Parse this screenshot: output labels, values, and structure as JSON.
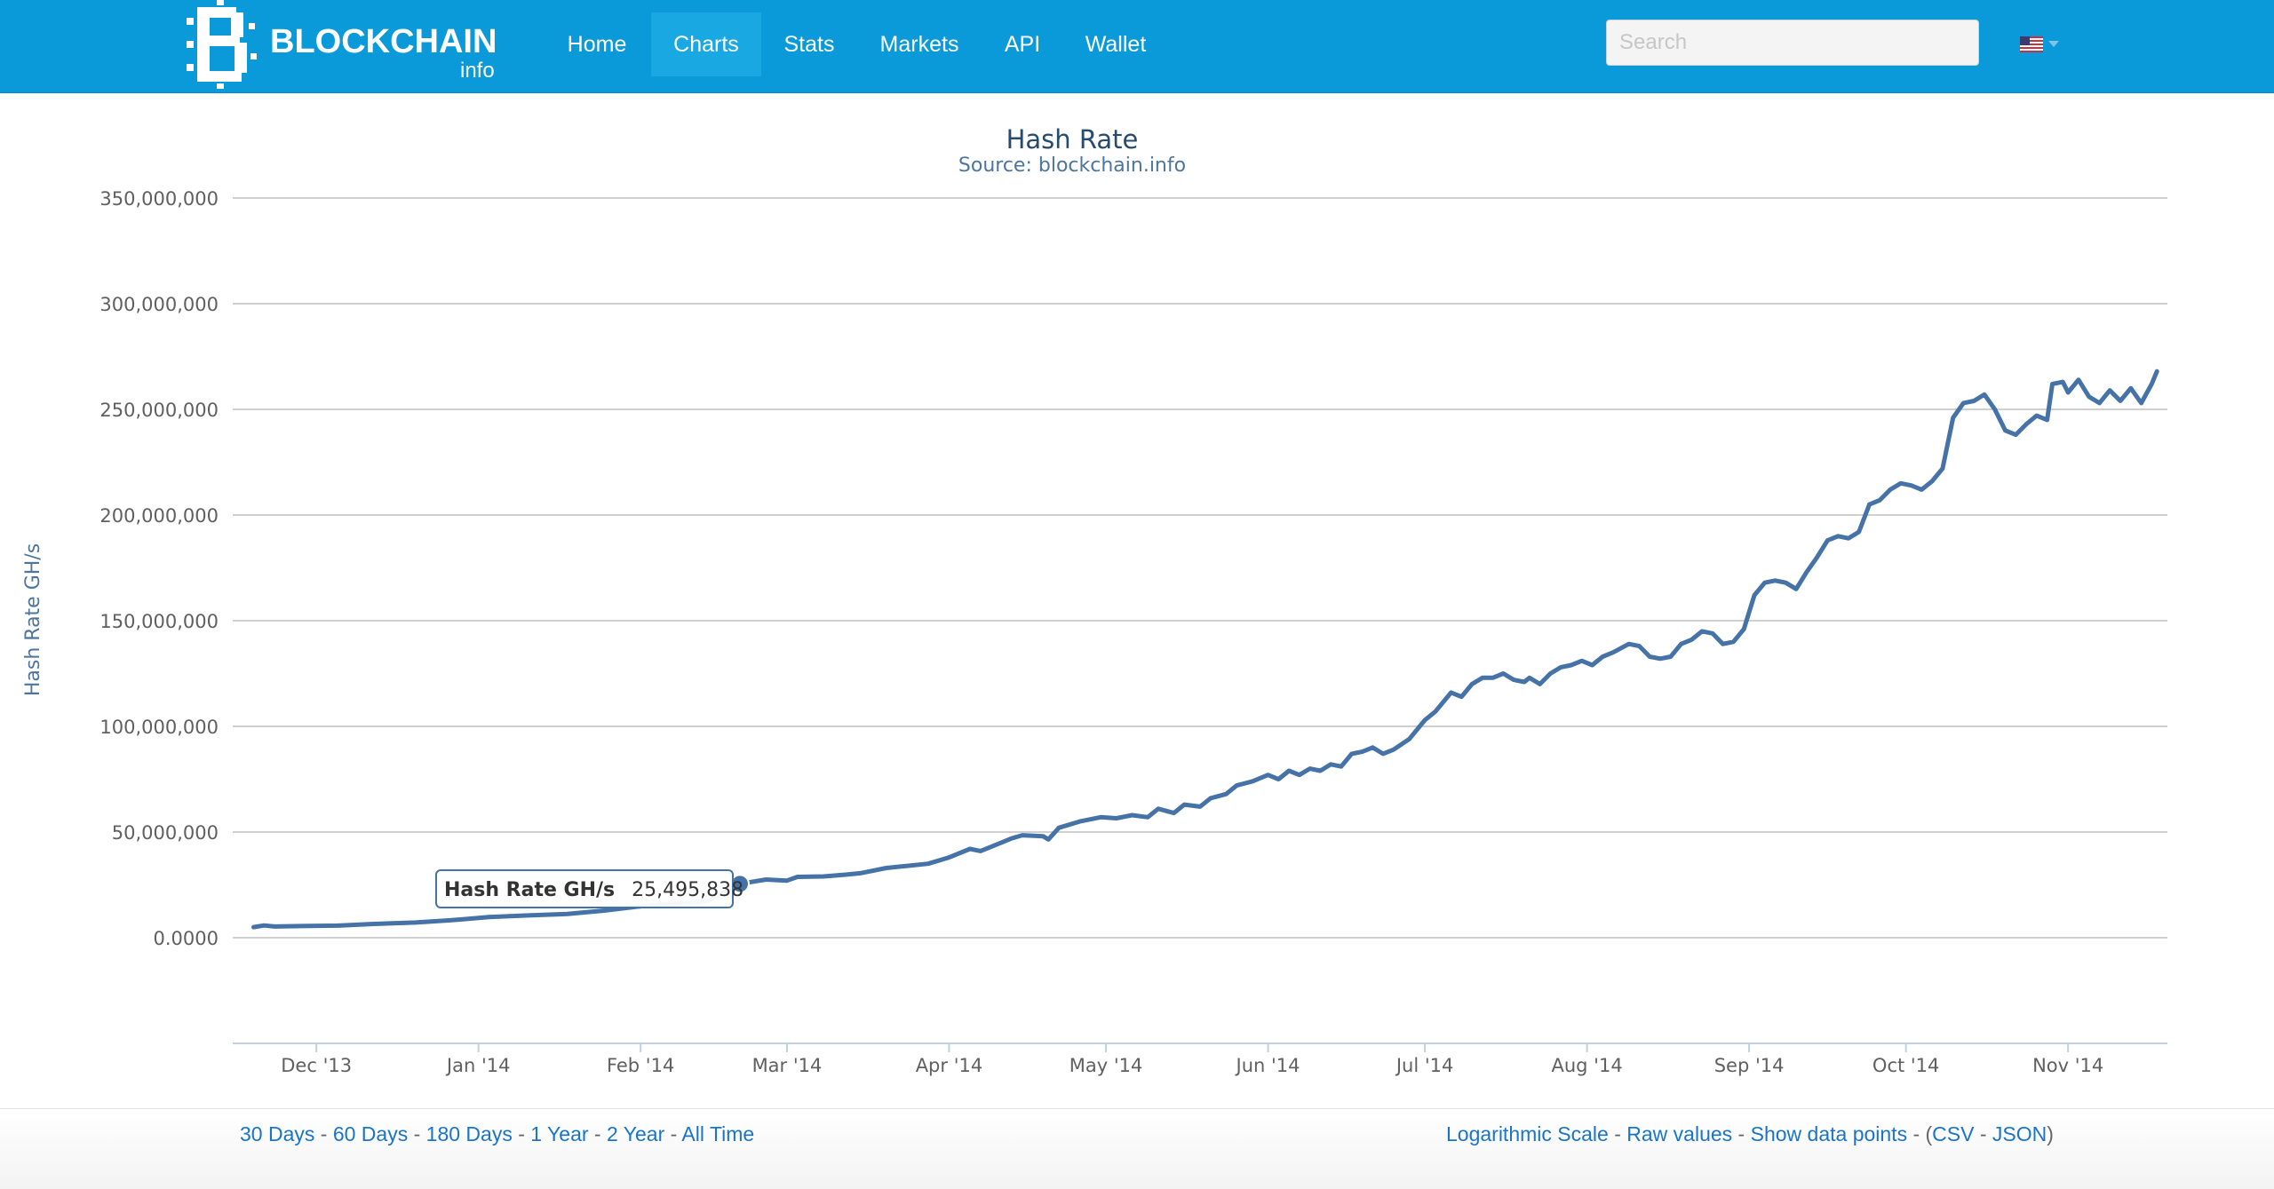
{
  "brand": {
    "name": "BLOCKCHAIN",
    "sub": "info"
  },
  "nav": {
    "items": [
      {
        "label": "Home"
      },
      {
        "label": "Charts",
        "active": true
      },
      {
        "label": "Stats"
      },
      {
        "label": "Markets"
      },
      {
        "label": "API"
      },
      {
        "label": "Wallet"
      }
    ]
  },
  "search": {
    "placeholder": "Search",
    "value": ""
  },
  "language": {
    "icon": "us-flag-icon"
  },
  "colors": {
    "navbar": "#0a9ad9",
    "series": "#4572a7",
    "link": "#1a74c9"
  },
  "tooltip": {
    "label": "Hash Rate GH/s",
    "value": "25,495,838"
  },
  "footer": {
    "ranges": [
      "30 Days",
      "60 Days",
      "180 Days",
      "1 Year",
      "2 Year",
      "All Time"
    ],
    "options": [
      "Logarithmic Scale",
      "Raw values",
      "Show data points"
    ],
    "downloads": [
      "CSV",
      "JSON"
    ]
  },
  "chart_data": {
    "type": "line",
    "title": "Hash Rate",
    "subtitle": "Source: blockchain.info",
    "ylabel": "Hash Rate GH/s",
    "ylim": [
      -50000000,
      350000000
    ],
    "yticks": [
      0,
      50000000,
      100000000,
      150000000,
      200000000,
      250000000,
      300000000,
      350000000
    ],
    "ytick_labels": [
      "0.0000",
      "50,000,000",
      "100,000,000",
      "150,000,000",
      "200,000,000",
      "250,000,000",
      "300,000,000",
      "350,000,000"
    ],
    "xlim": [
      "2013-11-15",
      "2014-11-20"
    ],
    "xticks": [
      "2013-12-01",
      "2014-01-01",
      "2014-02-01",
      "2014-03-01",
      "2014-04-01",
      "2014-05-01",
      "2014-06-01",
      "2014-07-01",
      "2014-08-01",
      "2014-09-01",
      "2014-10-01",
      "2014-11-01"
    ],
    "xtick_labels": [
      "Dec '13",
      "Jan '14",
      "Feb '14",
      "Mar '14",
      "Apr '14",
      "May '14",
      "Jun '14",
      "Jul '14",
      "Aug '14",
      "Sep '14",
      "Oct '14",
      "Nov '14"
    ],
    "legend": "none",
    "grid": true,
    "highlight": {
      "date": "2014-02-20",
      "value": 25495838
    },
    "series": [
      {
        "values": [
          [
            "2013-11-19",
            5000000
          ],
          [
            "2013-11-21",
            5800000
          ],
          [
            "2013-11-23",
            5300000
          ],
          [
            "2013-11-28",
            5500000
          ],
          [
            "2013-12-05",
            5700000
          ],
          [
            "2013-12-12",
            6500000
          ],
          [
            "2013-12-20",
            7200000
          ],
          [
            "2013-12-28",
            8500000
          ],
          [
            "2014-01-03",
            9800000
          ],
          [
            "2014-01-10",
            10500000
          ],
          [
            "2014-01-18",
            11200000
          ],
          [
            "2014-01-25",
            12800000
          ],
          [
            "2014-01-31",
            14600000
          ],
          [
            "2014-02-05",
            15800000
          ],
          [
            "2014-02-10",
            16500000
          ],
          [
            "2014-02-14",
            17500000
          ],
          [
            "2014-02-20",
            25495838
          ],
          [
            "2014-02-25",
            27500000
          ],
          [
            "2014-03-01",
            27000000
          ],
          [
            "2014-03-03",
            28800000
          ],
          [
            "2014-03-08",
            29000000
          ],
          [
            "2014-03-12",
            29800000
          ],
          [
            "2014-03-15",
            30500000
          ],
          [
            "2014-03-20",
            33000000
          ],
          [
            "2014-03-24",
            34000000
          ],
          [
            "2014-03-28",
            35000000
          ],
          [
            "2014-04-01",
            38000000
          ],
          [
            "2014-04-05",
            42000000
          ],
          [
            "2014-04-07",
            41000000
          ],
          [
            "2014-04-10",
            44000000
          ],
          [
            "2014-04-13",
            47000000
          ],
          [
            "2014-04-15",
            48500000
          ],
          [
            "2014-04-19",
            48000000
          ],
          [
            "2014-04-20",
            46500000
          ],
          [
            "2014-04-22",
            52000000
          ],
          [
            "2014-04-26",
            55000000
          ],
          [
            "2014-04-30",
            57000000
          ],
          [
            "2014-05-03",
            56500000
          ],
          [
            "2014-05-06",
            58000000
          ],
          [
            "2014-05-09",
            57000000
          ],
          [
            "2014-05-11",
            61000000
          ],
          [
            "2014-05-14",
            59000000
          ],
          [
            "2014-05-16",
            63000000
          ],
          [
            "2014-05-19",
            62000000
          ],
          [
            "2014-05-21",
            66000000
          ],
          [
            "2014-05-24",
            68000000
          ],
          [
            "2014-05-26",
            72000000
          ],
          [
            "2014-05-29",
            74000000
          ],
          [
            "2014-06-01",
            77000000
          ],
          [
            "2014-06-03",
            75000000
          ],
          [
            "2014-06-05",
            79000000
          ],
          [
            "2014-06-07",
            77000000
          ],
          [
            "2014-06-09",
            80000000
          ],
          [
            "2014-06-11",
            79000000
          ],
          [
            "2014-06-13",
            82000000
          ],
          [
            "2014-06-15",
            81000000
          ],
          [
            "2014-06-17",
            87000000
          ],
          [
            "2014-06-19",
            88000000
          ],
          [
            "2014-06-21",
            90000000
          ],
          [
            "2014-06-23",
            87000000
          ],
          [
            "2014-06-25",
            89000000
          ],
          [
            "2014-06-28",
            94000000
          ],
          [
            "2014-07-01",
            103000000
          ],
          [
            "2014-07-03",
            107000000
          ],
          [
            "2014-07-06",
            116000000
          ],
          [
            "2014-07-08",
            114000000
          ],
          [
            "2014-07-10",
            120000000
          ],
          [
            "2014-07-12",
            123000000
          ],
          [
            "2014-07-14",
            123000000
          ],
          [
            "2014-07-16",
            125000000
          ],
          [
            "2014-07-18",
            122000000
          ],
          [
            "2014-07-20",
            121000000
          ],
          [
            "2014-07-21",
            123000000
          ],
          [
            "2014-07-23",
            120000000
          ],
          [
            "2014-07-25",
            125000000
          ],
          [
            "2014-07-27",
            128000000
          ],
          [
            "2014-07-29",
            129000000
          ],
          [
            "2014-07-31",
            131000000
          ],
          [
            "2014-08-02",
            129000000
          ],
          [
            "2014-08-04",
            133000000
          ],
          [
            "2014-08-06",
            135000000
          ],
          [
            "2014-08-09",
            139000000
          ],
          [
            "2014-08-11",
            138000000
          ],
          [
            "2014-08-13",
            133000000
          ],
          [
            "2014-08-15",
            132000000
          ],
          [
            "2014-08-17",
            133000000
          ],
          [
            "2014-08-19",
            139000000
          ],
          [
            "2014-08-21",
            141000000
          ],
          [
            "2014-08-23",
            145000000
          ],
          [
            "2014-08-25",
            144000000
          ],
          [
            "2014-08-27",
            139000000
          ],
          [
            "2014-08-29",
            140000000
          ],
          [
            "2014-08-31",
            146000000
          ],
          [
            "2014-09-02",
            162000000
          ],
          [
            "2014-09-04",
            168000000
          ],
          [
            "2014-09-06",
            169000000
          ],
          [
            "2014-09-08",
            168000000
          ],
          [
            "2014-09-10",
            165000000
          ],
          [
            "2014-09-12",
            173000000
          ],
          [
            "2014-09-14",
            180000000
          ],
          [
            "2014-09-16",
            188000000
          ],
          [
            "2014-09-18",
            190000000
          ],
          [
            "2014-09-20",
            189000000
          ],
          [
            "2014-09-22",
            192000000
          ],
          [
            "2014-09-24",
            205000000
          ],
          [
            "2014-09-26",
            207000000
          ],
          [
            "2014-09-28",
            212000000
          ],
          [
            "2014-09-30",
            215000000
          ],
          [
            "2014-10-02",
            214000000
          ],
          [
            "2014-10-04",
            212000000
          ],
          [
            "2014-10-06",
            216000000
          ],
          [
            "2014-10-08",
            222000000
          ],
          [
            "2014-10-10",
            246000000
          ],
          [
            "2014-10-12",
            253000000
          ],
          [
            "2014-10-14",
            254000000
          ],
          [
            "2014-10-16",
            257000000
          ],
          [
            "2014-10-18",
            250000000
          ],
          [
            "2014-10-20",
            240000000
          ],
          [
            "2014-10-22",
            238000000
          ],
          [
            "2014-10-24",
            243000000
          ],
          [
            "2014-10-26",
            247000000
          ],
          [
            "2014-10-28",
            245000000
          ],
          [
            "2014-10-29",
            262000000
          ],
          [
            "2014-10-31",
            263000000
          ],
          [
            "2014-11-01",
            258000000
          ],
          [
            "2014-11-03",
            264000000
          ],
          [
            "2014-11-05",
            256000000
          ],
          [
            "2014-11-07",
            253000000
          ],
          [
            "2014-11-09",
            259000000
          ],
          [
            "2014-11-11",
            254000000
          ],
          [
            "2014-11-13",
            260000000
          ],
          [
            "2014-11-15",
            253000000
          ],
          [
            "2014-11-17",
            262000000
          ],
          [
            "2014-11-18",
            268000000
          ]
        ]
      }
    ]
  }
}
